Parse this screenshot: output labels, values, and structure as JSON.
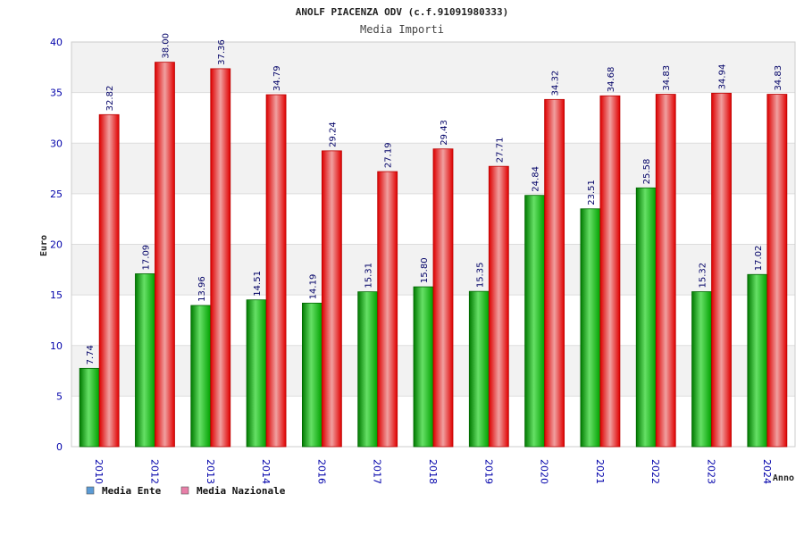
{
  "chart_data": {
    "type": "bar",
    "title": "ANOLF PIACENZA ODV (c.f.91091980333)",
    "subtitle": "Media Importi",
    "ylabel": "Euro",
    "xlabel": "Anno",
    "ylim": [
      0,
      40
    ],
    "yticks": [
      0,
      5,
      10,
      15,
      20,
      25,
      30,
      35,
      40
    ],
    "grid": "horizontal bands",
    "legend_placement": "bottom-left",
    "categories": [
      "2010",
      "2012",
      "2013",
      "2014",
      "2016",
      "2017",
      "2018",
      "2019",
      "2020",
      "2021",
      "2022",
      "2023",
      "2024"
    ],
    "series": [
      {
        "name": "Media Ente",
        "legend_color": "#5b9bd5",
        "bar_color": "#00aa00",
        "values": [
          7.74,
          17.09,
          13.96,
          14.51,
          14.19,
          15.31,
          15.8,
          15.35,
          24.84,
          23.51,
          25.58,
          15.32,
          17.02
        ],
        "labels": [
          "7.74",
          "17.09",
          "13.96",
          "14.51",
          "14.19",
          "15.31",
          "15.80",
          "15.35",
          "24.84",
          "23.51",
          "25.58",
          "15.32",
          "17.02"
        ]
      },
      {
        "name": "Media Nazionale",
        "legend_color": "#e87fa8",
        "bar_color": "#ee0000",
        "values": [
          32.82,
          38.0,
          37.36,
          34.79,
          29.24,
          27.19,
          29.43,
          27.71,
          34.32,
          34.68,
          34.83,
          34.94,
          34.83
        ],
        "labels": [
          "32.82",
          "38.00",
          "37.36",
          "34.79",
          "29.24",
          "27.19",
          "29.43",
          "27.71",
          "34.32",
          "34.68",
          "34.83",
          "34.94",
          "34.83"
        ]
      }
    ]
  }
}
